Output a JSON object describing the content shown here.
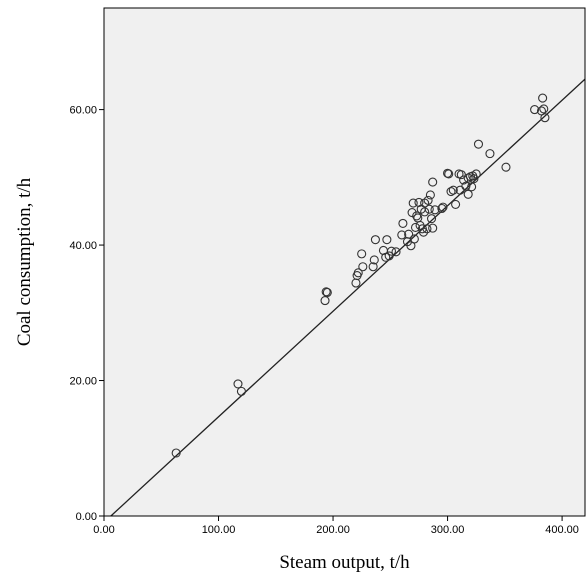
{
  "chart_data": {
    "type": "scatter",
    "title": "",
    "xlabel": "Steam output, t/h",
    "ylabel": "Coal consumption, t/h",
    "xlim": [
      0,
      420
    ],
    "ylim": [
      0,
      75
    ],
    "x_ticks": [
      "0.00",
      "100.00",
      "200.00",
      "300.00",
      "400.00"
    ],
    "x_tick_values": [
      0,
      100,
      200,
      300,
      400
    ],
    "y_ticks": [
      "0.00",
      "20.00",
      "40.00",
      "60.00"
    ],
    "y_tick_values": [
      0,
      20,
      40,
      60
    ],
    "grid": false,
    "plot_background": "#f0f0f0",
    "marker": "open-circle",
    "marker_color": "#333333",
    "fit_line": {
      "x": [
        6,
        420
      ],
      "y": [
        0,
        64.5
      ]
    },
    "points": [
      [
        63,
        9.3
      ],
      [
        117,
        19.5
      ],
      [
        120,
        18.4
      ],
      [
        193,
        31.8
      ],
      [
        194,
        33.1
      ],
      [
        195,
        33.0
      ],
      [
        220,
        34.4
      ],
      [
        221,
        35.5
      ],
      [
        222,
        35.9
      ],
      [
        225,
        38.7
      ],
      [
        226,
        36.8
      ],
      [
        235,
        36.8
      ],
      [
        236,
        37.8
      ],
      [
        237,
        40.8
      ],
      [
        244,
        39.2
      ],
      [
        246,
        38.2
      ],
      [
        247,
        40.8
      ],
      [
        249,
        38.4
      ],
      [
        251,
        39.1
      ],
      [
        255,
        39.0
      ],
      [
        260,
        41.5
      ],
      [
        261,
        43.2
      ],
      [
        265,
        40.5
      ],
      [
        266,
        41.6
      ],
      [
        268,
        39.9
      ],
      [
        269,
        44.8
      ],
      [
        270,
        46.2
      ],
      [
        271,
        40.9
      ],
      [
        272,
        42.6
      ],
      [
        273,
        44.3
      ],
      [
        274,
        44.0
      ],
      [
        275,
        46.3
      ],
      [
        276,
        42.9
      ],
      [
        277,
        45.3
      ],
      [
        278,
        42.4
      ],
      [
        279,
        41.9
      ],
      [
        280,
        44.9
      ],
      [
        280,
        46.2
      ],
      [
        282,
        42.4
      ],
      [
        283,
        46.6
      ],
      [
        284,
        45.3
      ],
      [
        285,
        47.4
      ],
      [
        286,
        43.9
      ],
      [
        287,
        42.5
      ],
      [
        287,
        49.3
      ],
      [
        289,
        45.2
      ],
      [
        295,
        45.4
      ],
      [
        296,
        45.6
      ],
      [
        300,
        50.6
      ],
      [
        301,
        50.5
      ],
      [
        303,
        47.9
      ],
      [
        305,
        48.1
      ],
      [
        307,
        46.0
      ],
      [
        310,
        50.5
      ],
      [
        311,
        48.1
      ],
      [
        312,
        50.4
      ],
      [
        314,
        49.6
      ],
      [
        316,
        48.7
      ],
      [
        318,
        47.5
      ],
      [
        318,
        49.9
      ],
      [
        320,
        50.1
      ],
      [
        321,
        48.6
      ],
      [
        322,
        50.2
      ],
      [
        323,
        49.8
      ],
      [
        325,
        50.5
      ],
      [
        327,
        54.9
      ],
      [
        337,
        53.5
      ],
      [
        351,
        51.5
      ],
      [
        376,
        60.0
      ],
      [
        382,
        59.8
      ],
      [
        383,
        61.7
      ],
      [
        384,
        60.1
      ],
      [
        385,
        58.8
      ]
    ]
  }
}
